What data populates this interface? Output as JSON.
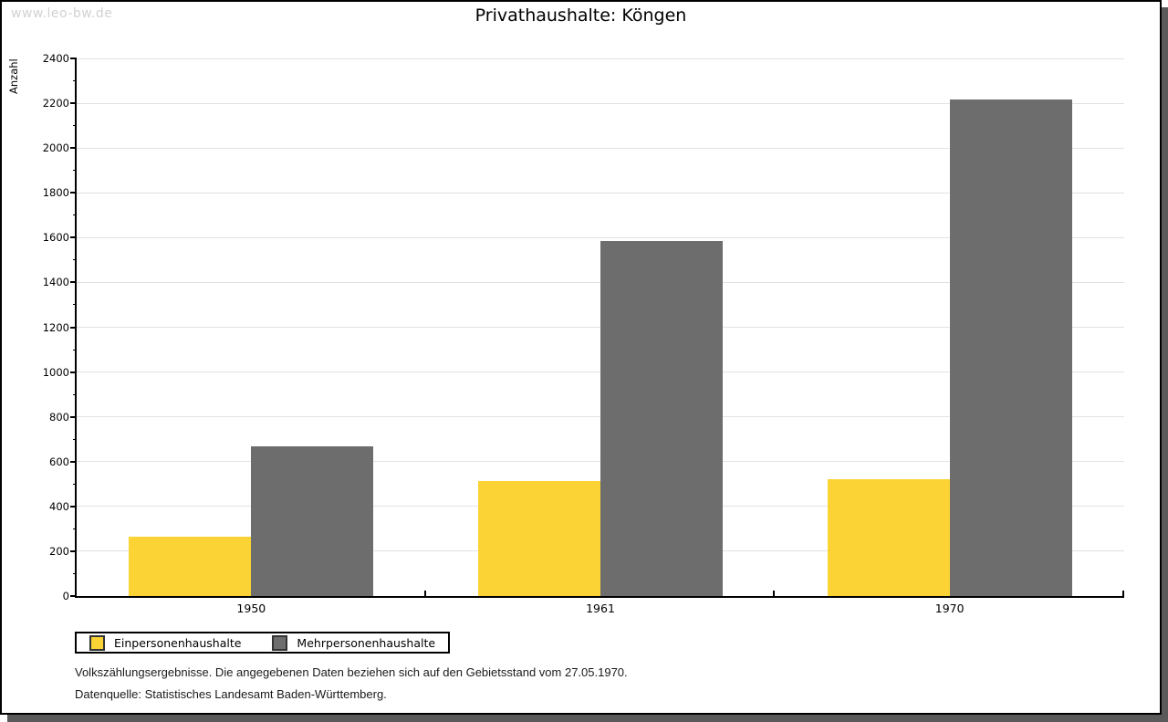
{
  "page": {
    "watermark": "www.leo-bw.de"
  },
  "chart_data": {
    "type": "bar",
    "title": "Privathaushalte: Köngen",
    "ylabel": "Anzahl",
    "xlabel": "",
    "categories": [
      "1950",
      "1961",
      "1970"
    ],
    "series": [
      {
        "name": "Einpersonenhaushalte",
        "color": "#FBD335",
        "values": [
          265,
          515,
          520
        ]
      },
      {
        "name": "Mehrpersonenhaushalte",
        "color": "#6D6D6D",
        "values": [
          670,
          1585,
          2215
        ]
      }
    ],
    "ylim": [
      0,
      2400
    ],
    "ytick_step": 200,
    "yminor_step": 100,
    "grid": true,
    "gridline_color": "#E2E2E2",
    "axis_color": "#000000",
    "legend_position": "bottom-left"
  },
  "footer": {
    "line1": "Volkszählungsergebnisse. Die angegebenen Daten beziehen sich auf den Gebietsstand vom 27.05.1970.",
    "line2": "Datenquelle: Statistisches Landesamt Baden-Württemberg."
  }
}
